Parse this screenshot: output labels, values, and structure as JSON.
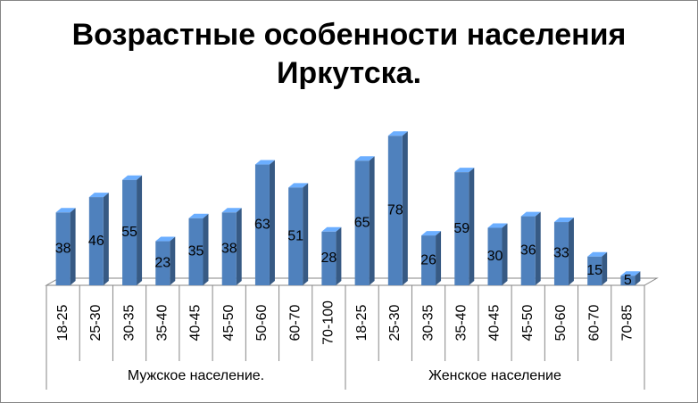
{
  "chart_data": {
    "type": "bar",
    "title": "Возрастные особенности населения Иркутска.",
    "color": "#4f81bd",
    "groups": [
      {
        "name": "Мужское население.",
        "categories": [
          "18-25",
          "25-30",
          "30-35",
          "35-40",
          "40-45",
          "45-50",
          "50-60",
          "60-70",
          "70-100"
        ],
        "values": [
          38,
          46,
          55,
          23,
          35,
          38,
          63,
          51,
          28
        ]
      },
      {
        "name": "Женское население",
        "categories": [
          "18-25",
          "25-30",
          "30-35",
          "35-40",
          "40-45",
          "45-50",
          "50-60",
          "60-70",
          "70-85"
        ],
        "values": [
          65,
          78,
          26,
          59,
          30,
          36,
          33,
          15,
          5
        ]
      }
    ]
  }
}
